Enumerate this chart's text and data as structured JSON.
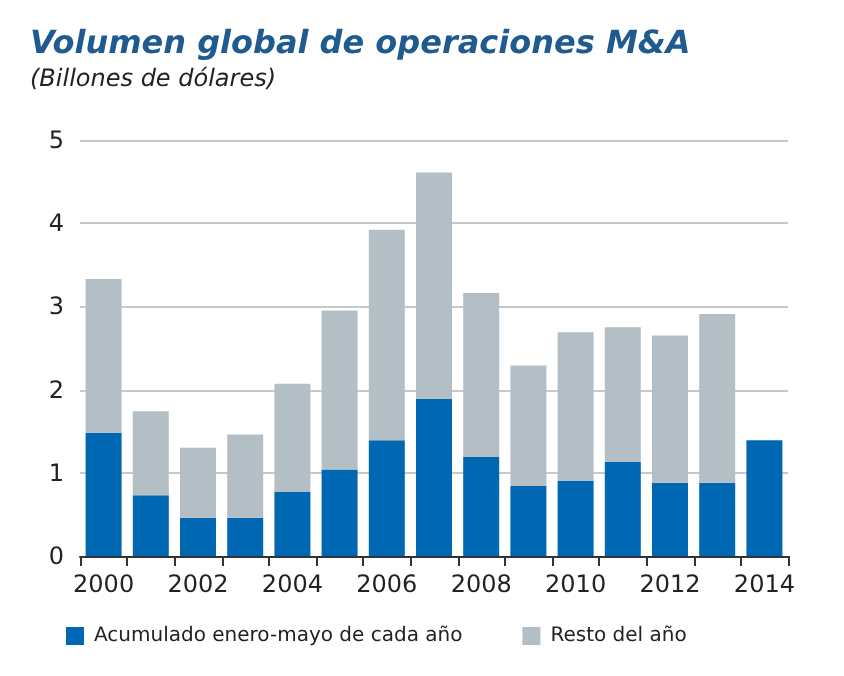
{
  "chart_data": {
    "type": "bar",
    "title": "Volumen global de operaciones M&A",
    "subtitle": "(Billones de dólares)",
    "categories": [
      "2000",
      null,
      "2002",
      null,
      "2004",
      null,
      "2006",
      null,
      "2008",
      null,
      "2010",
      null,
      "2012",
      null,
      "2014"
    ],
    "series": [
      {
        "name": "Acumulado enero-mayo de cada año",
        "color": "#0068b3",
        "values": [
          1.48,
          0.73,
          0.46,
          0.46,
          0.77,
          1.04,
          1.39,
          1.89,
          1.19,
          0.84,
          0.9,
          1.13,
          0.88,
          0.88,
          1.39
        ]
      },
      {
        "name": "Resto del año",
        "color": "#b4bfc5",
        "values": [
          1.85,
          1.01,
          0.84,
          1.0,
          1.3,
          1.91,
          2.53,
          2.72,
          1.97,
          1.45,
          1.79,
          1.62,
          1.77,
          2.03,
          null
        ]
      }
    ],
    "stacked": true,
    "ylim": [
      0,
      5
    ],
    "yticks": [
      0,
      1,
      2,
      3,
      4,
      5
    ],
    "grid": "y",
    "legend": "bottom"
  }
}
